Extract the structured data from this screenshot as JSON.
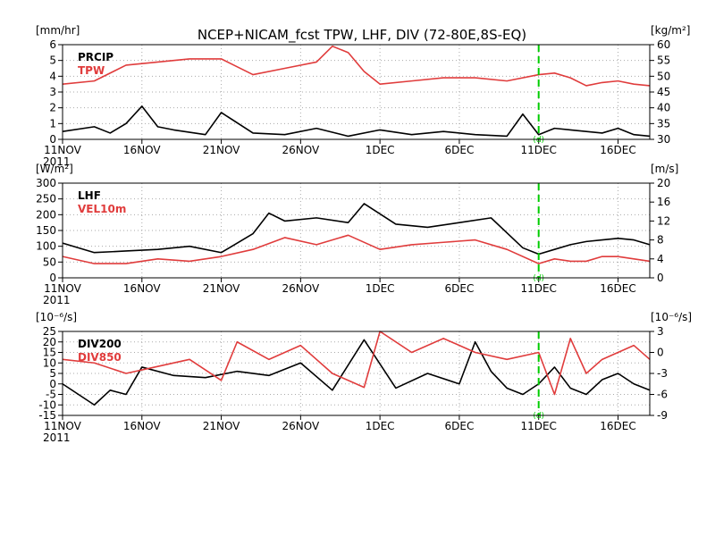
{
  "title": "NCEP+NICAM_fcst TPW, LHF, DIV (72-80E,8S-EQ)",
  "colors": {
    "black_series": "#000000",
    "red_series": "#e03c3c",
    "forecast_marker": "#00cc00",
    "grid": "#aaaaaa"
  },
  "forecast_marker_label": "(d)",
  "chart_data": [
    {
      "type": "line",
      "panel": "top",
      "title": "NCEP+NICAM_fcst TPW, LHF, DIV (72-80E,8S-EQ)",
      "x_ticks": [
        "11NOV",
        "16NOV",
        "21NOV",
        "26NOV",
        "1DEC",
        "6DEC",
        "11DEC",
        "16DEC"
      ],
      "x_year_label": "2011",
      "x_start": "2011-11-11",
      "x_end": "2011-12-18",
      "forecast_start": "2011-12-11",
      "left_axis": {
        "label": "[mm/hr]",
        "ylim": [
          0,
          6
        ],
        "ticks": [
          "0",
          "1",
          "2",
          "3",
          "4",
          "5",
          "6"
        ]
      },
      "right_axis": {
        "label": "[kg/m²]",
        "ylim": [
          30,
          60
        ],
        "ticks": [
          "30",
          "35",
          "40",
          "45",
          "50",
          "55",
          "60"
        ]
      },
      "grid": true,
      "legend_position": "top-left",
      "series": [
        {
          "name": "PRCIP",
          "axis": "left",
          "color": "#000000",
          "x": [
            "2011-11-11",
            "2011-11-13",
            "2011-11-14",
            "2011-11-15",
            "2011-11-16",
            "2011-11-17",
            "2011-11-18",
            "2011-11-20",
            "2011-11-21",
            "2011-11-23",
            "2011-11-25",
            "2011-11-27",
            "2011-11-29",
            "2011-12-01",
            "2011-12-03",
            "2011-12-05",
            "2011-12-07",
            "2011-12-09",
            "2011-12-10",
            "2011-12-11",
            "2011-12-12",
            "2011-12-13",
            "2011-12-14",
            "2011-12-15",
            "2011-12-16",
            "2011-12-17",
            "2011-12-18"
          ],
          "values": [
            0.5,
            0.8,
            0.4,
            1.0,
            2.1,
            0.8,
            0.6,
            0.3,
            1.7,
            0.4,
            0.3,
            0.7,
            0.2,
            0.6,
            0.3,
            0.5,
            0.3,
            0.2,
            1.6,
            0.3,
            0.7,
            0.6,
            0.5,
            0.4,
            0.7,
            0.3,
            0.2
          ]
        },
        {
          "name": "TPW",
          "axis": "right",
          "color": "#e03c3c",
          "x": [
            "2011-11-11",
            "2011-11-13",
            "2011-11-15",
            "2011-11-17",
            "2011-11-19",
            "2011-11-21",
            "2011-11-23",
            "2011-11-25",
            "2011-11-27",
            "2011-11-28",
            "2011-11-29",
            "2011-11-30",
            "2011-12-01",
            "2011-12-03",
            "2011-12-05",
            "2011-12-07",
            "2011-12-09",
            "2011-12-11",
            "2011-12-12",
            "2011-12-13",
            "2011-12-14",
            "2011-12-15",
            "2011-12-16",
            "2011-12-17",
            "2011-12-18"
          ],
          "values": [
            47.5,
            48.5,
            53.5,
            54.5,
            55.5,
            55.5,
            50.5,
            52.5,
            54.5,
            59.5,
            57.5,
            51.5,
            47.5,
            48.5,
            49.5,
            49.5,
            48.5,
            50.5,
            51.0,
            49.5,
            47.0,
            48.0,
            48.5,
            47.5,
            47.0
          ]
        }
      ]
    },
    {
      "type": "line",
      "panel": "middle",
      "x_ticks": [
        "11NOV",
        "16NOV",
        "21NOV",
        "26NOV",
        "1DEC",
        "6DEC",
        "11DEC",
        "16DEC"
      ],
      "x_year_label": "2011",
      "x_start": "2011-11-11",
      "x_end": "2011-12-18",
      "forecast_start": "2011-12-11",
      "left_axis": {
        "label": "[W/m²]",
        "ylim": [
          0,
          300
        ],
        "ticks": [
          "0",
          "50",
          "100",
          "150",
          "200",
          "250",
          "300"
        ]
      },
      "right_axis": {
        "label": "[m/s]",
        "ylim": [
          0,
          20
        ],
        "ticks": [
          "0",
          "4",
          "8",
          "12",
          "16",
          "20"
        ]
      },
      "grid": true,
      "legend_position": "top-left",
      "series": [
        {
          "name": "LHF",
          "axis": "left",
          "color": "#000000",
          "x": [
            "2011-11-11",
            "2011-11-13",
            "2011-11-15",
            "2011-11-17",
            "2011-11-19",
            "2011-11-21",
            "2011-11-23",
            "2011-11-24",
            "2011-11-25",
            "2011-11-27",
            "2011-11-29",
            "2011-11-30",
            "2011-12-02",
            "2011-12-04",
            "2011-12-06",
            "2011-12-08",
            "2011-12-10",
            "2011-12-11",
            "2011-12-12",
            "2011-12-13",
            "2011-12-14",
            "2011-12-15",
            "2011-12-16",
            "2011-12-17",
            "2011-12-18"
          ],
          "values": [
            110,
            80,
            85,
            90,
            100,
            80,
            140,
            205,
            180,
            190,
            175,
            235,
            170,
            160,
            175,
            190,
            95,
            75,
            90,
            105,
            115,
            120,
            125,
            120,
            105
          ]
        },
        {
          "name": "VEL10m",
          "axis": "right",
          "color": "#e03c3c",
          "x": [
            "2011-11-11",
            "2011-11-13",
            "2011-11-15",
            "2011-11-17",
            "2011-11-19",
            "2011-11-21",
            "2011-11-23",
            "2011-11-25",
            "2011-11-27",
            "2011-11-29",
            "2011-12-01",
            "2011-12-03",
            "2011-12-05",
            "2011-12-07",
            "2011-12-09",
            "2011-12-11",
            "2011-12-12",
            "2011-12-13",
            "2011-12-14",
            "2011-12-15",
            "2011-12-16",
            "2011-12-17",
            "2011-12-18"
          ],
          "values": [
            4.5,
            3.0,
            3.0,
            4.0,
            3.5,
            4.5,
            6.0,
            8.5,
            7.0,
            9.0,
            6.0,
            7.0,
            7.5,
            8.0,
            6.0,
            3.0,
            4.0,
            3.5,
            3.5,
            4.5,
            4.5,
            4.0,
            3.5
          ]
        }
      ]
    },
    {
      "type": "line",
      "panel": "bottom",
      "x_ticks": [
        "11NOV",
        "16NOV",
        "21NOV",
        "26NOV",
        "1DEC",
        "6DEC",
        "11DEC",
        "16DEC"
      ],
      "x_year_label": "2011",
      "x_start": "2011-11-11",
      "x_end": "2011-12-18",
      "forecast_start": "2011-12-11",
      "left_axis": {
        "label": "[10⁻⁶/s]",
        "ylim": [
          -15,
          25
        ],
        "ticks": [
          "-15",
          "-10",
          "-5",
          "0",
          "5",
          "10",
          "15",
          "20",
          "25"
        ]
      },
      "right_axis": {
        "label": "[10⁻⁶/s]",
        "ylim": [
          -9,
          3
        ],
        "ticks": [
          "-9",
          "-6",
          "-3",
          "0",
          "3"
        ]
      },
      "grid": true,
      "legend_position": "top-left",
      "series": [
        {
          "name": "DIV200",
          "axis": "left",
          "color": "#000000",
          "x": [
            "2011-11-11",
            "2011-11-13",
            "2011-11-14",
            "2011-11-15",
            "2011-11-16",
            "2011-11-18",
            "2011-11-20",
            "2011-11-22",
            "2011-11-24",
            "2011-11-26",
            "2011-11-28",
            "2011-11-30",
            "2011-12-02",
            "2011-12-04",
            "2011-12-06",
            "2011-12-07",
            "2011-12-08",
            "2011-12-09",
            "2011-12-10",
            "2011-12-11",
            "2011-12-12",
            "2011-12-13",
            "2011-12-14",
            "2011-12-15",
            "2011-12-16",
            "2011-12-17",
            "2011-12-18"
          ],
          "values": [
            0,
            -10,
            -3,
            -5,
            8,
            4,
            3,
            6,
            4,
            10,
            -3,
            21,
            -2,
            5,
            0,
            20,
            6,
            -2,
            -5,
            0,
            8,
            -2,
            -5,
            2,
            5,
            0,
            -3
          ]
        },
        {
          "name": "DIV850",
          "axis": "right",
          "color": "#e03c3c",
          "x": [
            "2011-11-11",
            "2011-11-13",
            "2011-11-15",
            "2011-11-17",
            "2011-11-19",
            "2011-11-21",
            "2011-11-22",
            "2011-11-24",
            "2011-11-26",
            "2011-11-28",
            "2011-11-30",
            "2011-12-01",
            "2011-12-03",
            "2011-12-05",
            "2011-12-07",
            "2011-12-09",
            "2011-12-11",
            "2011-12-12",
            "2011-12-13",
            "2011-12-14",
            "2011-12-15",
            "2011-12-16",
            "2011-12-17",
            "2011-12-18"
          ],
          "values": [
            -1,
            -1.5,
            -3,
            -2,
            -1,
            -4,
            1.5,
            -1,
            1,
            -3,
            -5,
            3,
            0,
            2,
            0,
            -1,
            0,
            -6,
            2,
            -3,
            -1,
            0,
            1,
            -1
          ]
        }
      ]
    }
  ]
}
